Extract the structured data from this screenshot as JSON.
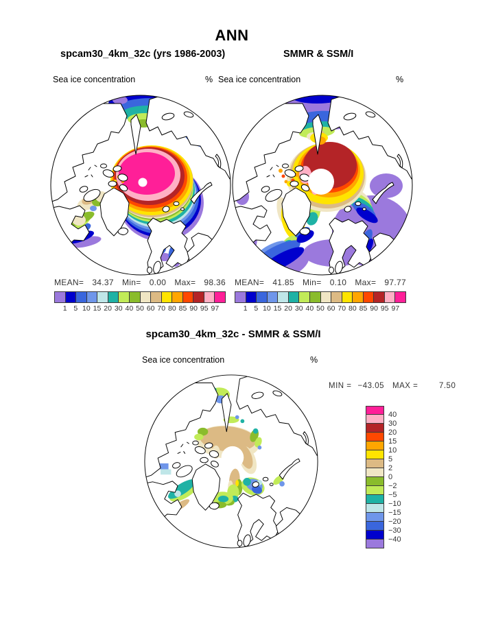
{
  "title": "ANN",
  "panels": {
    "model": {
      "title": "spcam30_4km_32c (yrs 1986-2003)",
      "field": "Sea ice concentration",
      "units": "%",
      "stats": {
        "mean_label": "MEAN=",
        "mean": "34.37",
        "min_label": "Min=",
        "min": "0.00",
        "max_label": "Max=",
        "max": "98.36"
      }
    },
    "obs": {
      "title": "SMMR & SSM/I",
      "field": "Sea ice concentration",
      "units": "%",
      "stats": {
        "mean_label": "MEAN=",
        "mean": "41.85",
        "min_label": "Min=",
        "min": "0.10",
        "max_label": "Max=",
        "max": "97.77"
      }
    },
    "diff": {
      "title": "spcam30_4km_32c - SMMR & SSM/I",
      "field": "Sea ice concentration",
      "units": "%",
      "stats": {
        "min_label": "MIN =",
        "min": "−43.05",
        "max_label": "MAX =",
        "max": "7.50"
      }
    }
  },
  "chart_data": {
    "type": "heatmap",
    "subtype": "north-polar-stereographic-map-panels",
    "season": "ANN",
    "variable": "Sea ice concentration",
    "units": "%",
    "levels": [
      1,
      5,
      10,
      15,
      20,
      30,
      40,
      50,
      60,
      70,
      80,
      85,
      90,
      95,
      97
    ],
    "levels_labels": [
      "1",
      "5",
      "10",
      "15",
      "20",
      "30",
      "40",
      "50",
      "60",
      "70",
      "80",
      "85",
      "90",
      "95",
      "97"
    ],
    "palette": [
      "#9b79dd",
      "#0000cd",
      "#3a66dd",
      "#6f96ea",
      "#bfe6e8",
      "#1fb2a5",
      "#c1eb58",
      "#8abc2c",
      "#f0e6c4",
      "#dcba84",
      "#ffe400",
      "#ffa600",
      "#ff4800",
      "#b42427",
      "#ffb0c5",
      "#ff1f98"
    ],
    "diff_levels": [
      -40,
      -30,
      -20,
      -15,
      -10,
      -5,
      -2,
      0,
      2,
      5,
      10,
      15,
      20,
      30,
      40
    ],
    "diff_labels": [
      "40",
      "30",
      "20",
      "15",
      "10",
      "5",
      "2",
      "0",
      "−2",
      "−5",
      "−10",
      "−15",
      "−20",
      "−30",
      "−40"
    ],
    "diff_palette": [
      "#ff1f98",
      "#ffb0c5",
      "#b42427",
      "#ff4800",
      "#ffa600",
      "#ffe400",
      "#dcba84",
      "#f0e6c4",
      "#8abc2c",
      "#c1eb58",
      "#1fb2a5",
      "#bfe6e8",
      "#6f96ea",
      "#3a66dd",
      "#0000cd",
      "#9b79dd"
    ],
    "panels": [
      {
        "id": "model",
        "title": "spcam30_4km_32c (yrs 1986-2003)",
        "mean": 34.37,
        "min": 0.0,
        "max": 98.36
      },
      {
        "id": "obs",
        "title": "SMMR & SSM/I",
        "mean": 41.85,
        "min": 0.1,
        "max": 97.77
      },
      {
        "id": "diff",
        "title": "spcam30_4km_32c - SMMR & SSM/I",
        "min": -43.05,
        "max": 7.5
      }
    ]
  }
}
